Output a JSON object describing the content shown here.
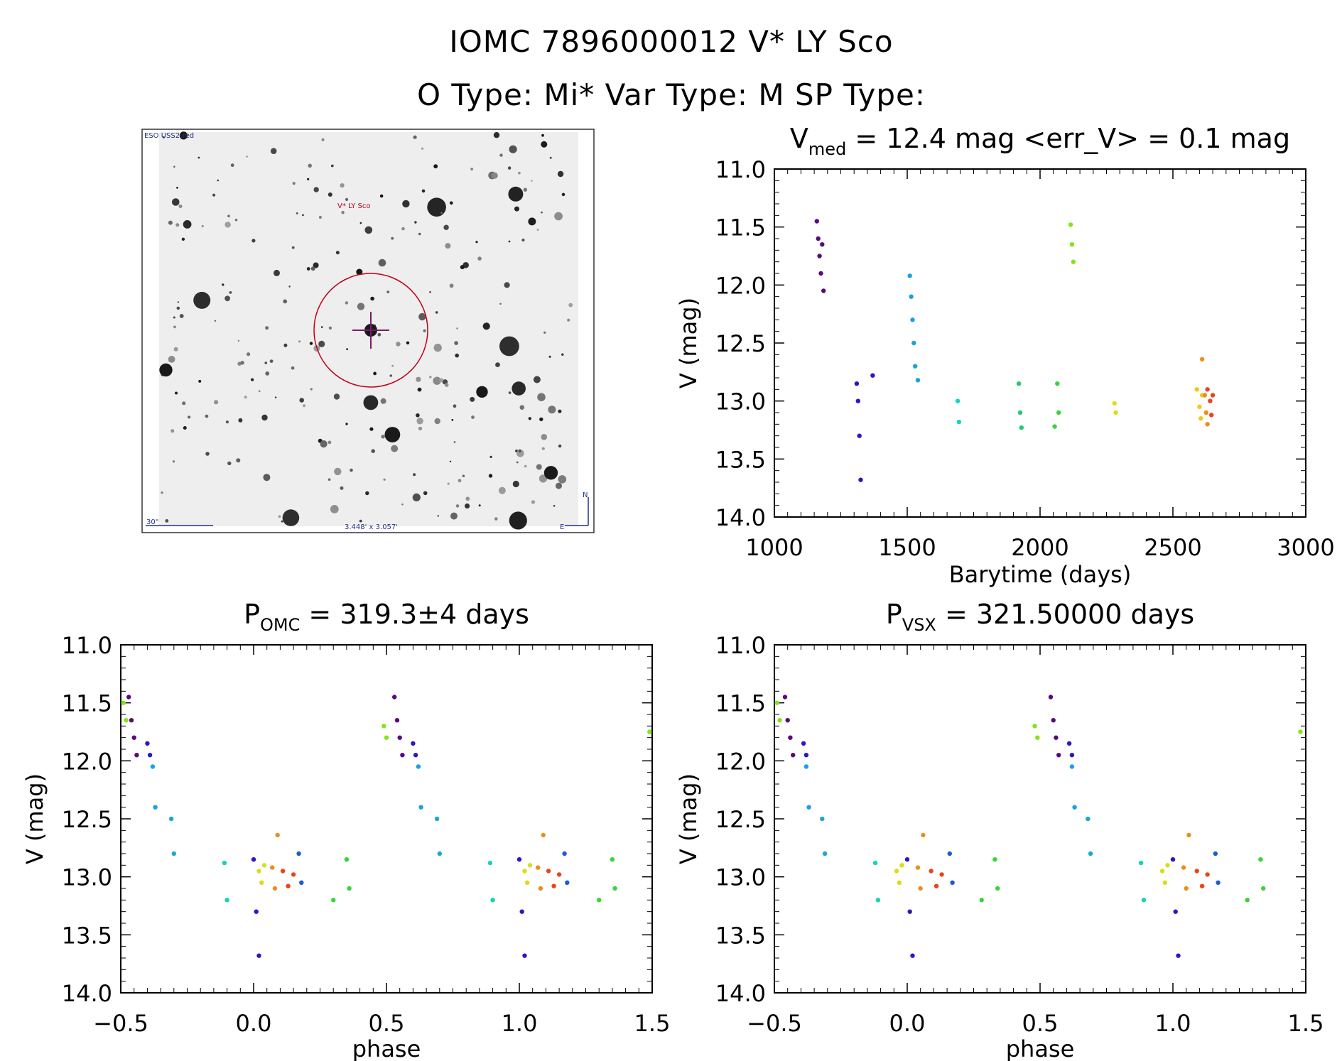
{
  "header": {
    "title_line1": "IOMC 7896000012   V* LY Sco",
    "title_line2": "O Type: Mi*  Var Type: M  SP Type:"
  },
  "finder": {
    "survey_label": "ESO USS2-red",
    "target_label": "V* LY Sco",
    "scale_label": "30\"",
    "fov_label": "3.448' x 3.057'",
    "north_label": "N",
    "east_label": "E",
    "marker_color": "#c0001a",
    "cross_color": "#7a1a6e"
  },
  "chart_data": [
    {
      "type": "scatter",
      "id": "lightcurve",
      "title_prefix": "V",
      "title_sub": "med",
      "title_suffix": " = 12.4 mag <err_V> = 0.1 mag",
      "xlabel": "Barytime (days)",
      "ylabel": "V (mag)",
      "xlim": [
        1000,
        3000
      ],
      "ylim": [
        11.0,
        14.0
      ],
      "y_inverted": true,
      "xticks": [
        "1000",
        "1500",
        "2000",
        "2500",
        "3000"
      ],
      "yticks": [
        "11.0",
        "11.5",
        "12.0",
        "12.5",
        "13.0",
        "13.5",
        "14.0"
      ],
      "grid": false,
      "groups": [
        {
          "color": "#5a0a78",
          "x": [
            1160,
            1165,
            1170,
            1175,
            1180,
            1185
          ],
          "y": [
            11.45,
            11.6,
            11.75,
            11.9,
            11.65,
            12.05
          ]
        },
        {
          "color": "#2a18c8",
          "x": [
            1310,
            1315,
            1320,
            1325,
            1370
          ],
          "y": [
            12.85,
            13.0,
            13.3,
            13.68,
            12.78
          ]
        },
        {
          "color": "#1aa0e6",
          "x": [
            1510,
            1515,
            1520,
            1525,
            1530,
            1540
          ],
          "y": [
            11.92,
            12.1,
            12.3,
            12.5,
            12.7,
            12.82
          ]
        },
        {
          "color": "#18d2c8",
          "x": [
            1690,
            1695
          ],
          "y": [
            13.0,
            13.18
          ]
        },
        {
          "color": "#28c86e",
          "x": [
            1920,
            1925,
            1930
          ],
          "y": [
            12.85,
            13.1,
            13.23
          ]
        },
        {
          "color": "#3cd23c",
          "x": [
            2055,
            2065,
            2070
          ],
          "y": [
            13.22,
            12.85,
            13.1
          ]
        },
        {
          "color": "#80e61a",
          "x": [
            2115,
            2120,
            2125
          ],
          "y": [
            11.48,
            11.65,
            11.8
          ]
        },
        {
          "color": "#dcdc1a",
          "x": [
            2280,
            2285
          ],
          "y": [
            13.02,
            13.1
          ]
        },
        {
          "color": "#f0c81a",
          "x": [
            2590,
            2600,
            2605,
            2610
          ],
          "y": [
            12.9,
            13.05,
            13.15,
            12.95
          ]
        },
        {
          "color": "#f08c1a",
          "x": [
            2610,
            2620,
            2625,
            2630
          ],
          "y": [
            12.64,
            12.95,
            13.1,
            13.2
          ]
        },
        {
          "color": "#e6461a",
          "x": [
            2630,
            2640,
            2645,
            2650
          ],
          "y": [
            12.9,
            13.0,
            13.12,
            12.95
          ]
        }
      ]
    },
    {
      "type": "scatter",
      "id": "phase-omc",
      "title_prefix": "P",
      "title_sub": "OMC",
      "title_suffix": " = 319.3±4 days",
      "xlabel": "phase",
      "ylabel": "V (mag)",
      "xlim": [
        -0.5,
        1.5
      ],
      "ylim": [
        11.0,
        14.0
      ],
      "y_inverted": true,
      "xticks": [
        "−0.5",
        "0.0",
        "0.5",
        "1.0",
        "1.5"
      ],
      "yticks": [
        "11.0",
        "11.5",
        "12.0",
        "12.5",
        "13.0",
        "13.5",
        "14.0"
      ],
      "grid": false,
      "groups": [
        {
          "color": "#80e61a",
          "x": [
            -0.49,
            -0.48,
            0.49,
            0.5,
            1.49
          ],
          "y": [
            11.5,
            11.65,
            11.7,
            11.8,
            11.75
          ]
        },
        {
          "color": "#5a0a78",
          "x": [
            -0.47,
            -0.46,
            -0.45,
            -0.44,
            0.53,
            0.54,
            0.55,
            0.56
          ],
          "y": [
            11.45,
            11.65,
            11.8,
            11.95,
            11.45,
            11.65,
            11.8,
            11.95
          ]
        },
        {
          "color": "#2a18c8",
          "x": [
            -0.4,
            -0.39,
            0.0,
            0.01,
            0.02,
            0.6,
            0.61,
            1.0,
            1.01,
            1.02
          ],
          "y": [
            11.85,
            11.95,
            12.85,
            13.3,
            13.68,
            11.85,
            11.95,
            12.85,
            13.3,
            13.68
          ]
        },
        {
          "color": "#1aa0e6",
          "x": [
            -0.38,
            -0.37,
            0.62,
            0.63
          ],
          "y": [
            12.05,
            12.4,
            12.05,
            12.4
          ]
        },
        {
          "color": "#18aacc",
          "x": [
            -0.31,
            -0.3,
            0.69,
            0.7
          ],
          "y": [
            12.5,
            12.8,
            12.5,
            12.8
          ]
        },
        {
          "color": "#18d2b4",
          "x": [
            -0.11,
            -0.1,
            0.89,
            0.9
          ],
          "y": [
            12.88,
            13.2,
            12.88,
            13.2
          ]
        },
        {
          "color": "#3cd23c",
          "x": [
            0.3,
            0.35,
            0.36,
            1.3,
            1.35,
            1.36
          ],
          "y": [
            13.2,
            12.85,
            13.1,
            13.2,
            12.85,
            13.1
          ]
        },
        {
          "color": "#dcdc1a",
          "x": [
            0.02,
            0.03,
            0.04,
            1.02,
            1.03,
            1.04
          ],
          "y": [
            12.95,
            13.05,
            12.9,
            12.95,
            13.05,
            12.9
          ]
        },
        {
          "color": "#f08c1a",
          "x": [
            0.07,
            0.08,
            0.09,
            1.07,
            1.08,
            1.09
          ],
          "y": [
            12.92,
            13.1,
            12.64,
            12.92,
            13.1,
            12.64
          ]
        },
        {
          "color": "#e6461a",
          "x": [
            0.11,
            0.13,
            0.15,
            1.11,
            1.13,
            1.15
          ],
          "y": [
            12.95,
            13.08,
            12.98,
            12.95,
            13.08,
            12.98
          ]
        },
        {
          "color": "#1a5adc",
          "x": [
            0.17,
            0.18,
            1.17,
            1.18
          ],
          "y": [
            12.8,
            13.05,
            12.8,
            13.05
          ]
        }
      ]
    },
    {
      "type": "scatter",
      "id": "phase-vsx",
      "title_prefix": "P",
      "title_sub": "VSX",
      "title_suffix": " = 321.50000 days",
      "xlabel": "phase",
      "ylabel": "V (mag)",
      "xlim": [
        -0.5,
        1.5
      ],
      "ylim": [
        11.0,
        14.0
      ],
      "y_inverted": true,
      "xticks": [
        "−0.5",
        "0.0",
        "0.5",
        "1.0",
        "1.5"
      ],
      "yticks": [
        "11.0",
        "11.5",
        "12.0",
        "12.5",
        "13.0",
        "13.5",
        "14.0"
      ],
      "grid": false,
      "groups": [
        {
          "color": "#80e61a",
          "x": [
            -0.49,
            -0.48,
            0.48,
            0.49,
            1.48
          ],
          "y": [
            11.5,
            11.65,
            11.7,
            11.8,
            11.75
          ]
        },
        {
          "color": "#5a0a78",
          "x": [
            -0.46,
            -0.45,
            -0.44,
            -0.43,
            0.54,
            0.55,
            0.56,
            0.57
          ],
          "y": [
            11.45,
            11.65,
            11.8,
            11.95,
            11.45,
            11.65,
            11.8,
            11.95
          ]
        },
        {
          "color": "#2a18c8",
          "x": [
            -0.39,
            -0.38,
            0.0,
            0.01,
            0.02,
            0.61,
            0.62,
            1.0,
            1.01,
            1.02
          ],
          "y": [
            11.85,
            11.95,
            12.85,
            13.3,
            13.68,
            11.85,
            11.95,
            12.85,
            13.3,
            13.68
          ]
        },
        {
          "color": "#1aa0e6",
          "x": [
            -0.38,
            -0.37,
            0.62,
            0.63
          ],
          "y": [
            12.05,
            12.4,
            12.05,
            12.4
          ]
        },
        {
          "color": "#18aacc",
          "x": [
            -0.32,
            -0.31,
            0.68,
            0.69
          ],
          "y": [
            12.5,
            12.8,
            12.5,
            12.8
          ]
        },
        {
          "color": "#18d2b4",
          "x": [
            -0.12,
            -0.11,
            0.88,
            0.89
          ],
          "y": [
            12.88,
            13.2,
            12.88,
            13.2
          ]
        },
        {
          "color": "#3cd23c",
          "x": [
            0.28,
            0.33,
            0.34,
            1.28,
            1.33,
            1.34
          ],
          "y": [
            13.2,
            12.85,
            13.1,
            13.2,
            12.85,
            13.1
          ]
        },
        {
          "color": "#dcdc1a",
          "x": [
            -0.04,
            -0.03,
            -0.02,
            0.96,
            0.97,
            0.98
          ],
          "y": [
            12.95,
            13.05,
            12.9,
            12.95,
            13.05,
            12.9
          ]
        },
        {
          "color": "#f08c1a",
          "x": [
            0.04,
            0.05,
            0.06,
            1.04,
            1.05,
            1.06
          ],
          "y": [
            12.92,
            13.1,
            12.64,
            12.92,
            13.1,
            12.64
          ]
        },
        {
          "color": "#e6461a",
          "x": [
            0.09,
            0.11,
            0.13,
            1.09,
            1.11,
            1.13
          ],
          "y": [
            12.95,
            13.08,
            12.98,
            12.95,
            13.08,
            12.98
          ]
        },
        {
          "color": "#1a5adc",
          "x": [
            0.16,
            0.17,
            1.16,
            1.17
          ],
          "y": [
            12.8,
            13.05,
            12.8,
            13.05
          ]
        }
      ]
    }
  ]
}
